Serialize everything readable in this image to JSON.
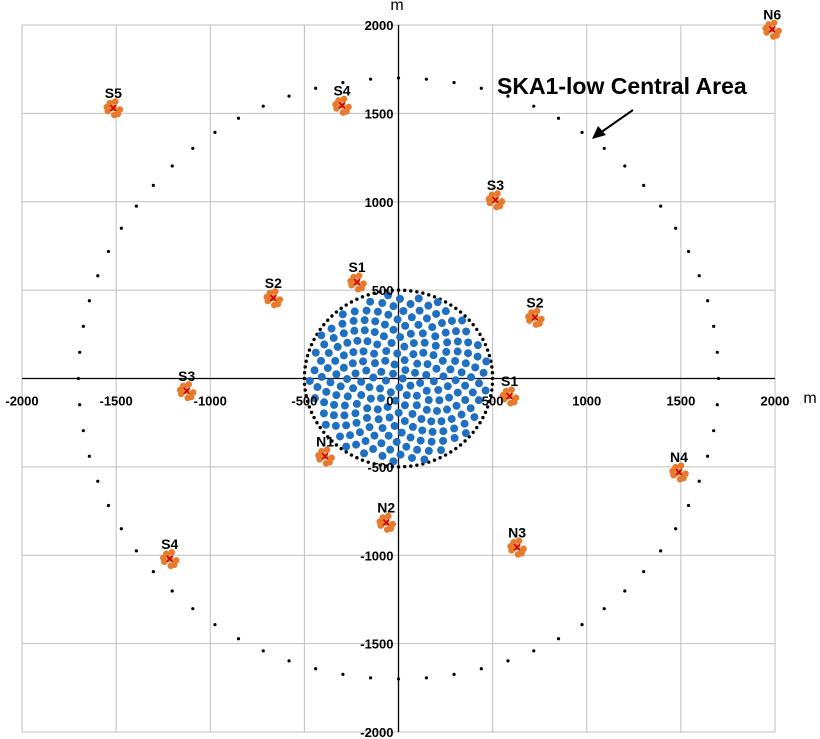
{
  "chart_data": {
    "type": "scatter",
    "title": "",
    "xlabel": "m",
    "ylabel": "m",
    "xlim": [
      -2000,
      2000
    ],
    "ylim": [
      -2000,
      2000
    ],
    "x_ticks": [
      -2000,
      -1500,
      -1000,
      -500,
      0,
      500,
      1000,
      1500,
      2000
    ],
    "y_ticks": [
      -2000,
      -1500,
      -1000,
      -500,
      0,
      500,
      1000,
      1500,
      2000
    ],
    "x_tick_labels": [
      "-2000",
      "-1500",
      "-1000",
      "-500",
      "0",
      "500",
      "1000",
      "1500",
      "2000"
    ],
    "y_tick_labels": [
      "-2000",
      "-1500",
      "-1000",
      "-500",
      "0",
      "500",
      "1000",
      "1500",
      "2000"
    ],
    "grid": true,
    "annotation": {
      "text": "SKA1-low Central Area",
      "points_to": [
        1000,
        1400
      ]
    },
    "core": {
      "radius": 500,
      "ring": "dotted",
      "color": "#1f70c1",
      "count": 224,
      "outer_radius": 480
    },
    "outer_ring": {
      "radius": 1700,
      "ring": "dotted"
    },
    "clusters": {
      "marker_color": "#e87a2c",
      "center_color": "#cc0000",
      "items": [
        {
          "label": "N6",
          "x": 1985,
          "y": 1975
        },
        {
          "label": "S5",
          "x": -1515,
          "y": 1530
        },
        {
          "label": "S4",
          "x": -300,
          "y": 1545
        },
        {
          "label": "S3",
          "x": 515,
          "y": 1010
        },
        {
          "label": "S2",
          "x": -665,
          "y": 455
        },
        {
          "label": "S1",
          "x": -220,
          "y": 545
        },
        {
          "label": "S2",
          "x": 725,
          "y": 345
        },
        {
          "label": "S1",
          "x": 590,
          "y": -100
        },
        {
          "label": "S3",
          "x": -1125,
          "y": -70
        },
        {
          "label": "N1",
          "x": -390,
          "y": -440
        },
        {
          "label": "N2",
          "x": -65,
          "y": -815
        },
        {
          "label": "N3",
          "x": 630,
          "y": -955
        },
        {
          "label": "N4",
          "x": 1490,
          "y": -530
        },
        {
          "label": "S4",
          "x": -1215,
          "y": -1020
        }
      ]
    }
  }
}
